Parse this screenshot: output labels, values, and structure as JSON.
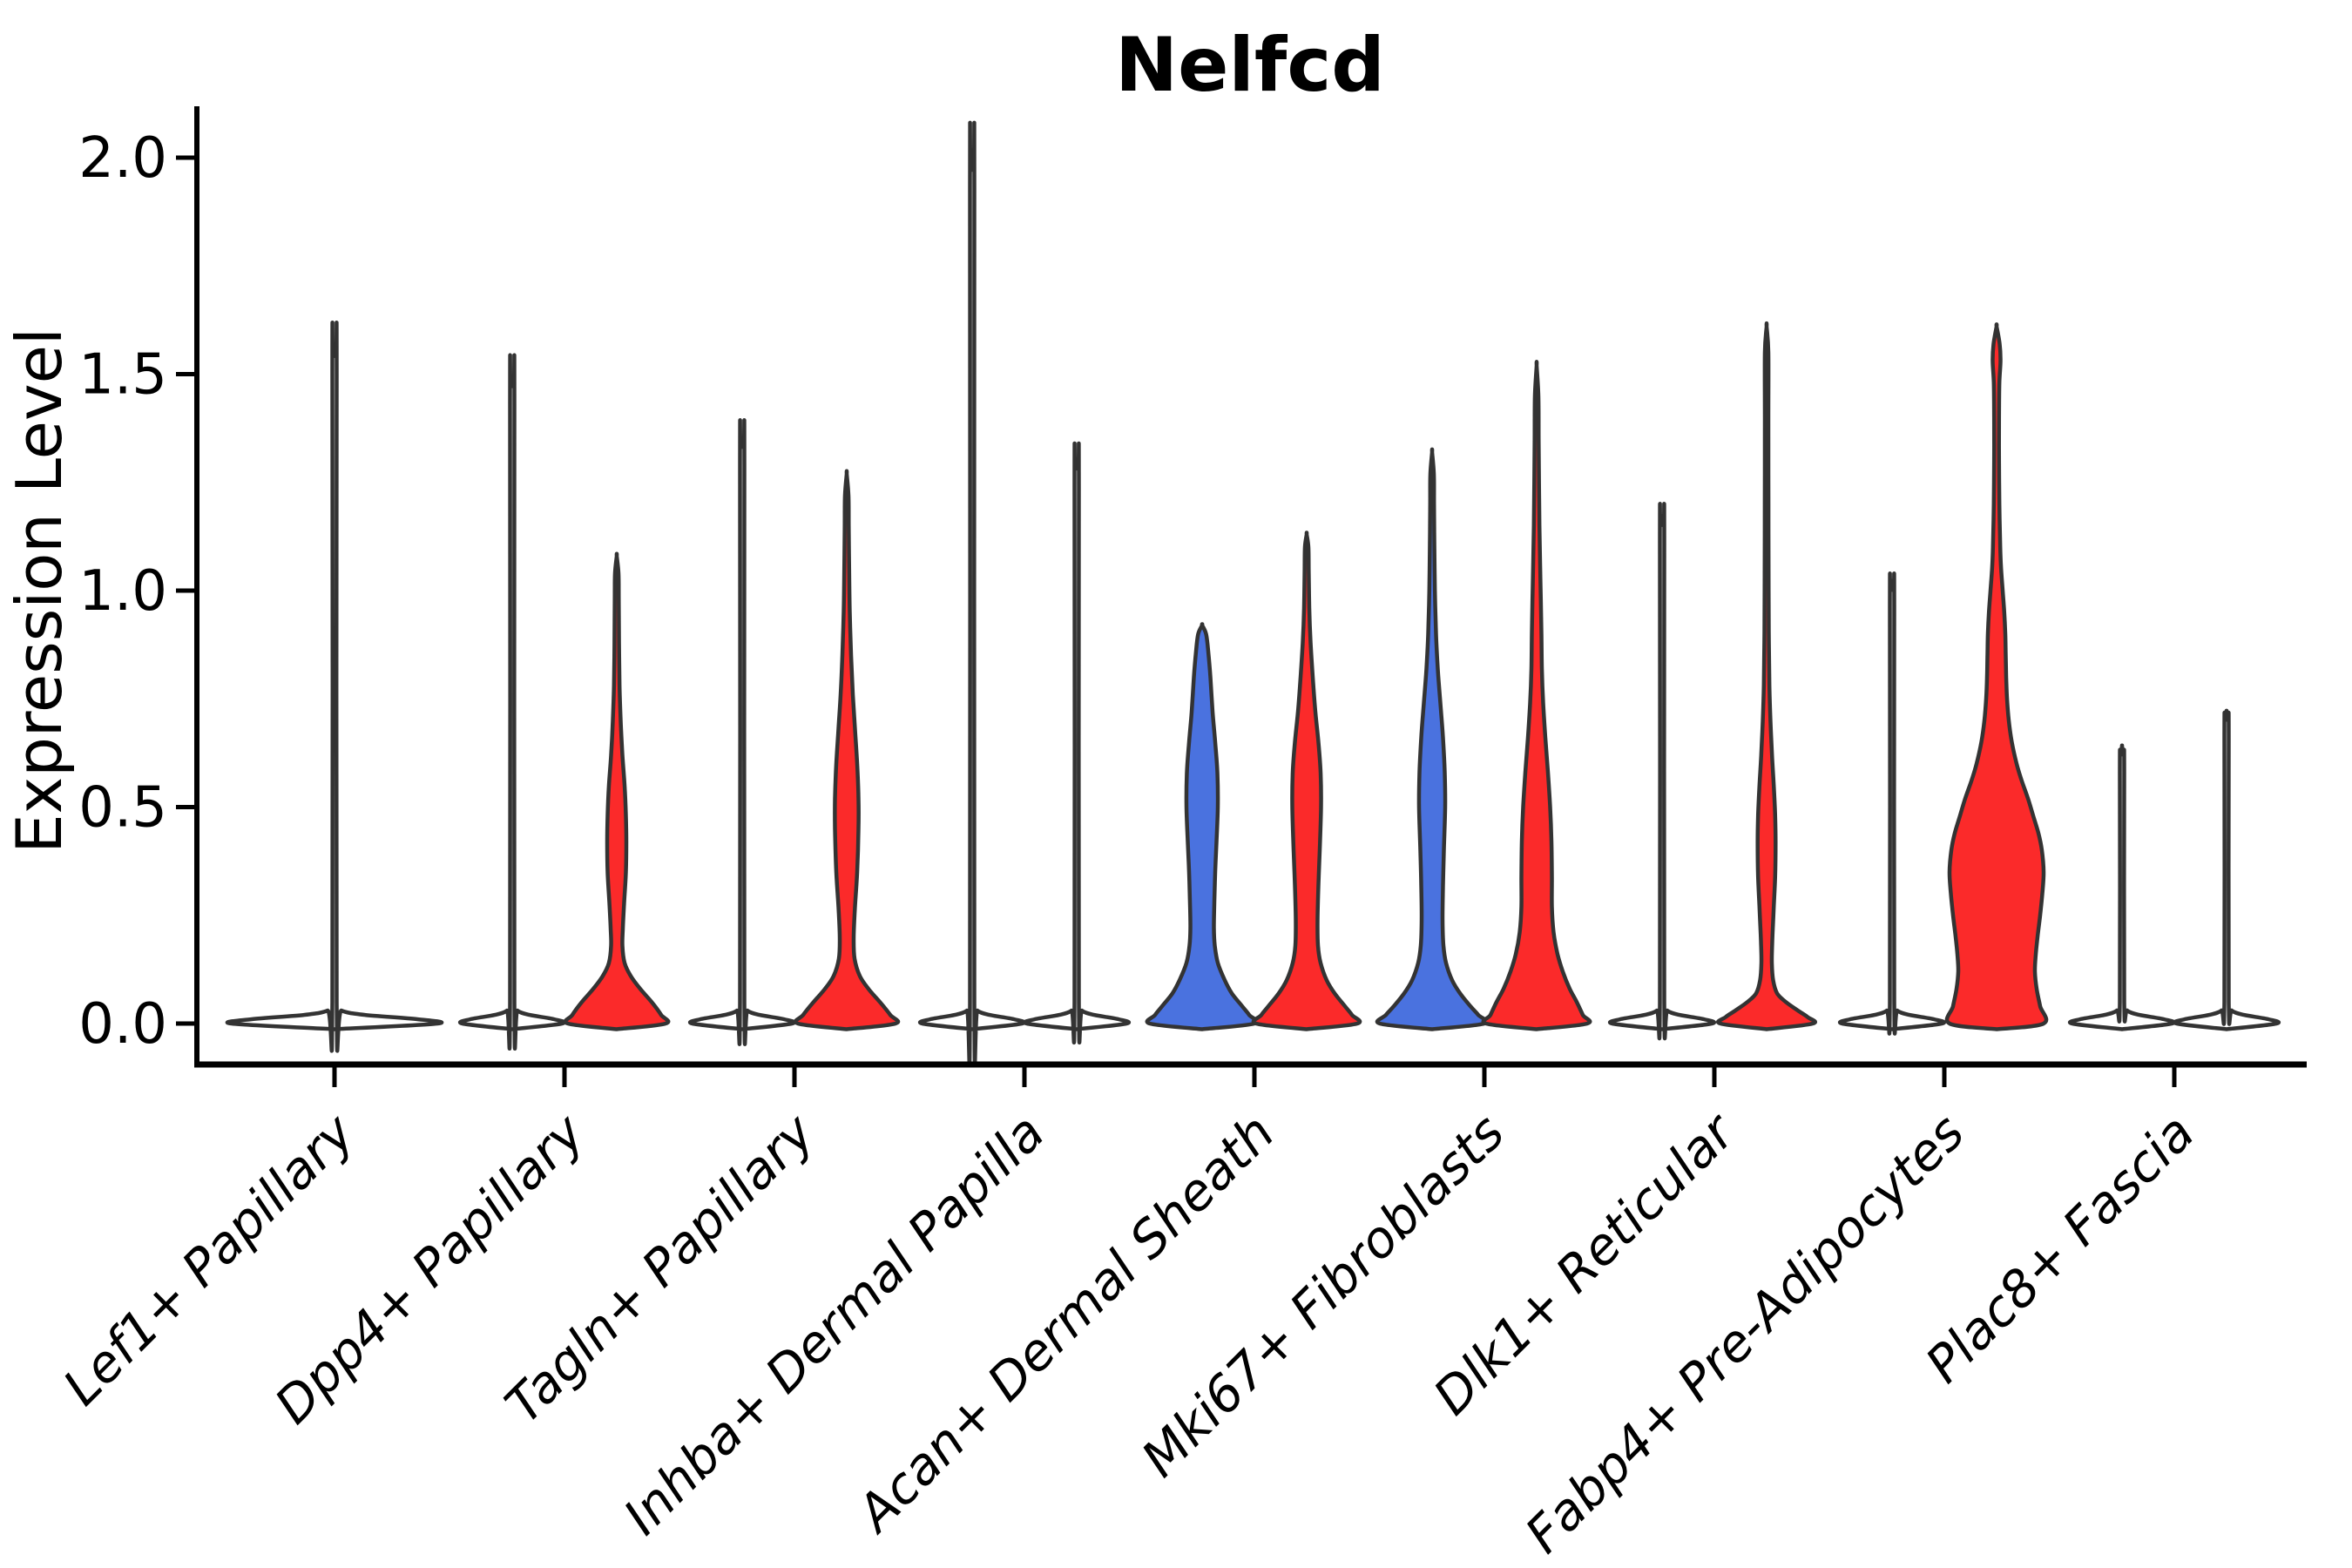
{
  "chart_data": {
    "type": "violin",
    "title": "Nelfcd",
    "xlabel": "",
    "ylabel": "Expression Level",
    "ylim": [
      0,
      2.0
    ],
    "grid": false,
    "legend": null,
    "yticks": [
      {
        "v": 0.0,
        "label": "0.0"
      },
      {
        "v": 0.5,
        "label": "0.5"
      },
      {
        "v": 1.0,
        "label": "1.0"
      },
      {
        "v": 1.5,
        "label": "1.5"
      },
      {
        "v": 2.0,
        "label": "2.0"
      }
    ],
    "categories": [
      "Lef1+ Papillary",
      "Dpp4+ Papillary",
      "Tagln+ Papillary",
      "Inhba+ Dermal Papilla",
      "Acan+ Dermal Sheath",
      "Mki67+ Fibroblasts",
      "Dlk1+ Reticular",
      "Fabp4+ Pre-Adipocytes",
      "Plac8+ Fascia"
    ],
    "colors": {
      "red": "#fb2a2a",
      "blue": "#4a72df",
      "none": "#ffffff",
      "outline": "#333333"
    },
    "violins": [
      {
        "cat": 0,
        "side": "center",
        "color": "none",
        "max": 1.56,
        "profile": [
          [
            -0.013,
            0
          ],
          [
            0,
            118
          ],
          [
            0.01,
            95
          ],
          [
            0.02,
            35
          ],
          [
            0.03,
            8
          ],
          [
            0.05,
            2.5
          ],
          [
            1.5,
            2.5
          ],
          [
            1.54,
            2
          ],
          [
            1.56,
            0
          ]
        ]
      },
      {
        "cat": 1,
        "side": "left",
        "color": "none",
        "max": 1.49,
        "profile": [
          [
            -0.013,
            0
          ],
          [
            0,
            57
          ],
          [
            0.01,
            48
          ],
          [
            0.02,
            20
          ],
          [
            0.03,
            6
          ],
          [
            0.05,
            2.5
          ],
          [
            1.43,
            2.5
          ],
          [
            1.47,
            2
          ],
          [
            1.49,
            0
          ]
        ]
      },
      {
        "cat": 1,
        "side": "right",
        "color": "red",
        "max": 1.08,
        "profile": [
          [
            -0.013,
            0
          ],
          [
            0,
            56
          ],
          [
            0.02,
            51
          ],
          [
            0.05,
            40
          ],
          [
            0.08,
            27
          ],
          [
            0.11,
            16
          ],
          [
            0.14,
            9
          ],
          [
            0.18,
            6.5
          ],
          [
            0.22,
            7
          ],
          [
            0.28,
            8.5
          ],
          [
            0.35,
            10.5
          ],
          [
            0.42,
            11
          ],
          [
            0.48,
            10.5
          ],
          [
            0.55,
            9
          ],
          [
            0.62,
            6.5
          ],
          [
            0.7,
            4.5
          ],
          [
            0.78,
            3.2
          ],
          [
            0.88,
            2.6
          ],
          [
            0.98,
            2.3
          ],
          [
            1.04,
            2
          ],
          [
            1.08,
            0
          ]
        ]
      },
      {
        "cat": 2,
        "side": "left",
        "color": "none",
        "max": 1.35,
        "profile": [
          [
            -0.013,
            0
          ],
          [
            0,
            57
          ],
          [
            0.01,
            48
          ],
          [
            0.02,
            20
          ],
          [
            0.03,
            6
          ],
          [
            0.05,
            2.5
          ],
          [
            1.29,
            2.5
          ],
          [
            1.33,
            2
          ],
          [
            1.35,
            0
          ]
        ]
      },
      {
        "cat": 2,
        "side": "right",
        "color": "red",
        "max": 1.27,
        "profile": [
          [
            -0.013,
            0
          ],
          [
            0,
            56
          ],
          [
            0.02,
            50
          ],
          [
            0.05,
            38
          ],
          [
            0.08,
            25
          ],
          [
            0.11,
            15
          ],
          [
            0.15,
            9
          ],
          [
            0.2,
            8
          ],
          [
            0.27,
            9.5
          ],
          [
            0.35,
            12
          ],
          [
            0.45,
            13.5
          ],
          [
            0.52,
            13.5
          ],
          [
            0.6,
            12
          ],
          [
            0.68,
            9.5
          ],
          [
            0.76,
            7
          ],
          [
            0.85,
            5
          ],
          [
            0.95,
            3.5
          ],
          [
            1.05,
            2.8
          ],
          [
            1.15,
            2.3
          ],
          [
            1.22,
            2
          ],
          [
            1.27,
            0
          ]
        ]
      },
      {
        "cat": 3,
        "side": "left",
        "color": "none",
        "max": 1.99,
        "profile": [
          [
            -0.013,
            0
          ],
          [
            0,
            57
          ],
          [
            0.01,
            48
          ],
          [
            0.02,
            20
          ],
          [
            0.03,
            6
          ],
          [
            0.05,
            2.5
          ],
          [
            1.93,
            2.5
          ],
          [
            1.97,
            2
          ],
          [
            1.99,
            0
          ]
        ]
      },
      {
        "cat": 3,
        "side": "right",
        "color": "none",
        "max": 1.3,
        "profile": [
          [
            -0.013,
            0
          ],
          [
            0,
            57
          ],
          [
            0.01,
            48
          ],
          [
            0.02,
            20
          ],
          [
            0.03,
            6
          ],
          [
            0.05,
            2.5
          ],
          [
            1.24,
            2.5
          ],
          [
            1.28,
            2
          ],
          [
            1.3,
            0
          ]
        ]
      },
      {
        "cat": 4,
        "side": "left",
        "color": "blue",
        "max": 0.92,
        "profile": [
          [
            -0.013,
            0
          ],
          [
            0,
            60
          ],
          [
            0.02,
            54
          ],
          [
            0.04,
            46
          ],
          [
            0.07,
            34
          ],
          [
            0.1,
            26
          ],
          [
            0.14,
            18
          ],
          [
            0.18,
            14.5
          ],
          [
            0.22,
            13.5
          ],
          [
            0.28,
            14
          ],
          [
            0.35,
            15
          ],
          [
            0.42,
            16.5
          ],
          [
            0.5,
            18
          ],
          [
            0.58,
            17.5
          ],
          [
            0.65,
            15
          ],
          [
            0.72,
            12
          ],
          [
            0.8,
            9.5
          ],
          [
            0.86,
            7
          ],
          [
            0.9,
            4.5
          ],
          [
            0.92,
            0
          ]
        ]
      },
      {
        "cat": 4,
        "side": "right",
        "color": "red",
        "max": 1.13,
        "profile": [
          [
            -0.013,
            0
          ],
          [
            0,
            58
          ],
          [
            0.02,
            52
          ],
          [
            0.04,
            44
          ],
          [
            0.07,
            32
          ],
          [
            0.1,
            23
          ],
          [
            0.14,
            16
          ],
          [
            0.18,
            13
          ],
          [
            0.24,
            12.5
          ],
          [
            0.32,
            13.5
          ],
          [
            0.4,
            15
          ],
          [
            0.5,
            16.5
          ],
          [
            0.58,
            16
          ],
          [
            0.65,
            13.5
          ],
          [
            0.72,
            10
          ],
          [
            0.8,
            7
          ],
          [
            0.88,
            4.5
          ],
          [
            0.96,
            3
          ],
          [
            1.04,
            2.4
          ],
          [
            1.1,
            2
          ],
          [
            1.13,
            0
          ]
        ]
      },
      {
        "cat": 5,
        "side": "left",
        "color": "blue",
        "max": 1.32,
        "profile": [
          [
            -0.013,
            0
          ],
          [
            0,
            60
          ],
          [
            0.02,
            53
          ],
          [
            0.04,
            44
          ],
          [
            0.07,
            32
          ],
          [
            0.1,
            23
          ],
          [
            0.14,
            16
          ],
          [
            0.18,
            13
          ],
          [
            0.24,
            12
          ],
          [
            0.32,
            12.5
          ],
          [
            0.4,
            13.5
          ],
          [
            0.5,
            15
          ],
          [
            0.58,
            14.5
          ],
          [
            0.66,
            12.5
          ],
          [
            0.74,
            9.5
          ],
          [
            0.82,
            6.5
          ],
          [
            0.9,
            4.5
          ],
          [
            1.0,
            3.2
          ],
          [
            1.1,
            2.6
          ],
          [
            1.2,
            2.2
          ],
          [
            1.27,
            2
          ],
          [
            1.32,
            0
          ]
        ]
      },
      {
        "cat": 5,
        "side": "right",
        "color": "red",
        "max": 1.52,
        "profile": [
          [
            -0.013,
            0
          ],
          [
            0,
            58
          ],
          [
            0.02,
            53
          ],
          [
            0.05,
            46
          ],
          [
            0.08,
            38
          ],
          [
            0.12,
            30
          ],
          [
            0.16,
            24
          ],
          [
            0.21,
            19.5
          ],
          [
            0.27,
            17.5
          ],
          [
            0.34,
            17.5
          ],
          [
            0.42,
            17
          ],
          [
            0.5,
            15.5
          ],
          [
            0.58,
            13
          ],
          [
            0.66,
            10
          ],
          [
            0.74,
            7.5
          ],
          [
            0.82,
            6
          ],
          [
            0.9,
            5.5
          ],
          [
            0.98,
            4.8
          ],
          [
            1.06,
            4
          ],
          [
            1.15,
            3.2
          ],
          [
            1.25,
            2.7
          ],
          [
            1.35,
            2.3
          ],
          [
            1.45,
            2
          ],
          [
            1.52,
            0
          ]
        ]
      },
      {
        "cat": 6,
        "side": "left",
        "color": "none",
        "max": 1.17,
        "profile": [
          [
            -0.013,
            0
          ],
          [
            0,
            57
          ],
          [
            0.01,
            48
          ],
          [
            0.02,
            20
          ],
          [
            0.03,
            6
          ],
          [
            0.05,
            2.5
          ],
          [
            1.11,
            2.5
          ],
          [
            1.15,
            2
          ],
          [
            1.17,
            0
          ]
        ]
      },
      {
        "cat": 6,
        "side": "right",
        "color": "red",
        "max": 1.61,
        "profile": [
          [
            -0.013,
            0
          ],
          [
            0,
            53
          ],
          [
            0.015,
            47
          ],
          [
            0.03,
            36
          ],
          [
            0.05,
            22
          ],
          [
            0.07,
            12
          ],
          [
            0.1,
            7.5
          ],
          [
            0.14,
            6
          ],
          [
            0.19,
            6.5
          ],
          [
            0.26,
            8
          ],
          [
            0.34,
            9.8
          ],
          [
            0.42,
            10.3
          ],
          [
            0.48,
            9.8
          ],
          [
            0.55,
            8.2
          ],
          [
            0.62,
            6.2
          ],
          [
            0.7,
            4.4
          ],
          [
            0.78,
            3.2
          ],
          [
            0.88,
            2.6
          ],
          [
            1.0,
            2.3
          ],
          [
            1.2,
            2.1
          ],
          [
            1.4,
            2
          ],
          [
            1.55,
            2
          ],
          [
            1.61,
            0
          ]
        ]
      },
      {
        "cat": 7,
        "side": "left",
        "color": "none",
        "max": 1.02,
        "profile": [
          [
            -0.013,
            0
          ],
          [
            0,
            57
          ],
          [
            0.01,
            48
          ],
          [
            0.02,
            20
          ],
          [
            0.03,
            6
          ],
          [
            0.05,
            2.5
          ],
          [
            0.96,
            2.5
          ],
          [
            1.0,
            2
          ],
          [
            1.02,
            0
          ]
        ]
      },
      {
        "cat": 7,
        "side": "right",
        "color": "red",
        "max": 1.61,
        "profile": [
          [
            -0.013,
            0
          ],
          [
            0,
            54
          ],
          [
            0.04,
            50
          ],
          [
            0.08,
            46
          ],
          [
            0.12,
            44
          ],
          [
            0.16,
            45
          ],
          [
            0.2,
            47
          ],
          [
            0.25,
            50
          ],
          [
            0.3,
            52.5
          ],
          [
            0.35,
            54
          ],
          [
            0.4,
            52
          ],
          [
            0.44,
            48
          ],
          [
            0.48,
            42
          ],
          [
            0.52,
            36
          ],
          [
            0.56,
            29
          ],
          [
            0.6,
            23
          ],
          [
            0.65,
            17.5
          ],
          [
            0.7,
            14
          ],
          [
            0.75,
            12
          ],
          [
            0.8,
            11
          ],
          [
            0.85,
            10.5
          ],
          [
            0.9,
            10
          ],
          [
            0.95,
            8.8
          ],
          [
            1.0,
            7
          ],
          [
            1.05,
            5.2
          ],
          [
            1.1,
            4.2
          ],
          [
            1.2,
            3.2
          ],
          [
            1.3,
            2.8
          ],
          [
            1.4,
            2.8
          ],
          [
            1.48,
            3.2
          ],
          [
            1.53,
            4.5
          ],
          [
            1.57,
            3.5
          ],
          [
            1.61,
            0
          ]
        ]
      },
      {
        "cat": 8,
        "side": "left",
        "color": "none",
        "max": 0.64,
        "profile": [
          [
            -0.013,
            0
          ],
          [
            0,
            57
          ],
          [
            0.01,
            48
          ],
          [
            0.02,
            20
          ],
          [
            0.03,
            6
          ],
          [
            0.05,
            2.5
          ],
          [
            0.58,
            2.5
          ],
          [
            0.62,
            2
          ],
          [
            0.64,
            0
          ]
        ]
      },
      {
        "cat": 8,
        "side": "right",
        "color": "none",
        "max": 0.72,
        "profile": [
          [
            -0.013,
            0
          ],
          [
            0,
            57
          ],
          [
            0.01,
            48
          ],
          [
            0.02,
            20
          ],
          [
            0.03,
            6
          ],
          [
            0.05,
            2.5
          ],
          [
            0.66,
            2.5
          ],
          [
            0.7,
            2
          ],
          [
            0.72,
            0
          ]
        ]
      }
    ]
  }
}
